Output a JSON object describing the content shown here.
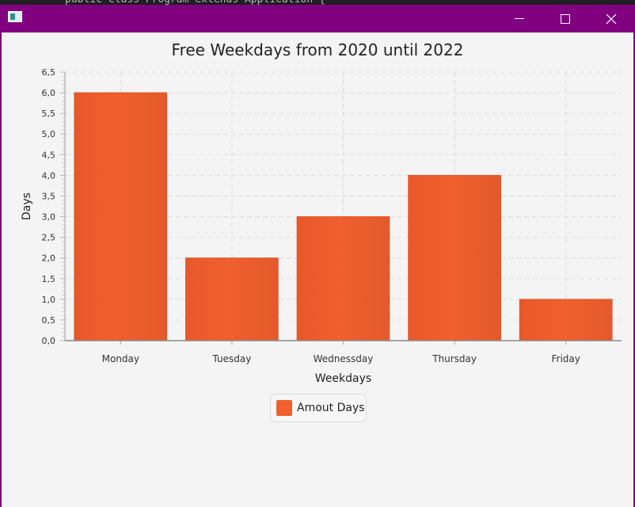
{
  "window": {
    "buttons": [
      "minimize",
      "maximize",
      "close"
    ]
  },
  "colors": {
    "title_bar": "#800080",
    "bar": "#f05f2d",
    "chart_background": "#f4f4f4",
    "grid": "#dddddd"
  },
  "chart_data": {
    "type": "bar",
    "title": "Free Weekdays from 2020 until 2022",
    "xlabel": "Weekdays",
    "ylabel": "Days",
    "categories": [
      "Monday",
      "Tuesday",
      "Wednessday",
      "Thursday",
      "Friday"
    ],
    "series": [
      {
        "name": "Amout Days",
        "values": [
          6,
          2,
          3,
          4,
          1
        ]
      }
    ],
    "ylim": [
      0,
      6.5
    ],
    "yticks": [
      "0,0",
      "0,5",
      "1,0",
      "1,5",
      "2,0",
      "2,5",
      "3,0",
      "3,5",
      "4,0",
      "4,5",
      "5,0",
      "5,5",
      "6,0",
      "6,5"
    ],
    "grid": true,
    "legend": "bottom"
  }
}
